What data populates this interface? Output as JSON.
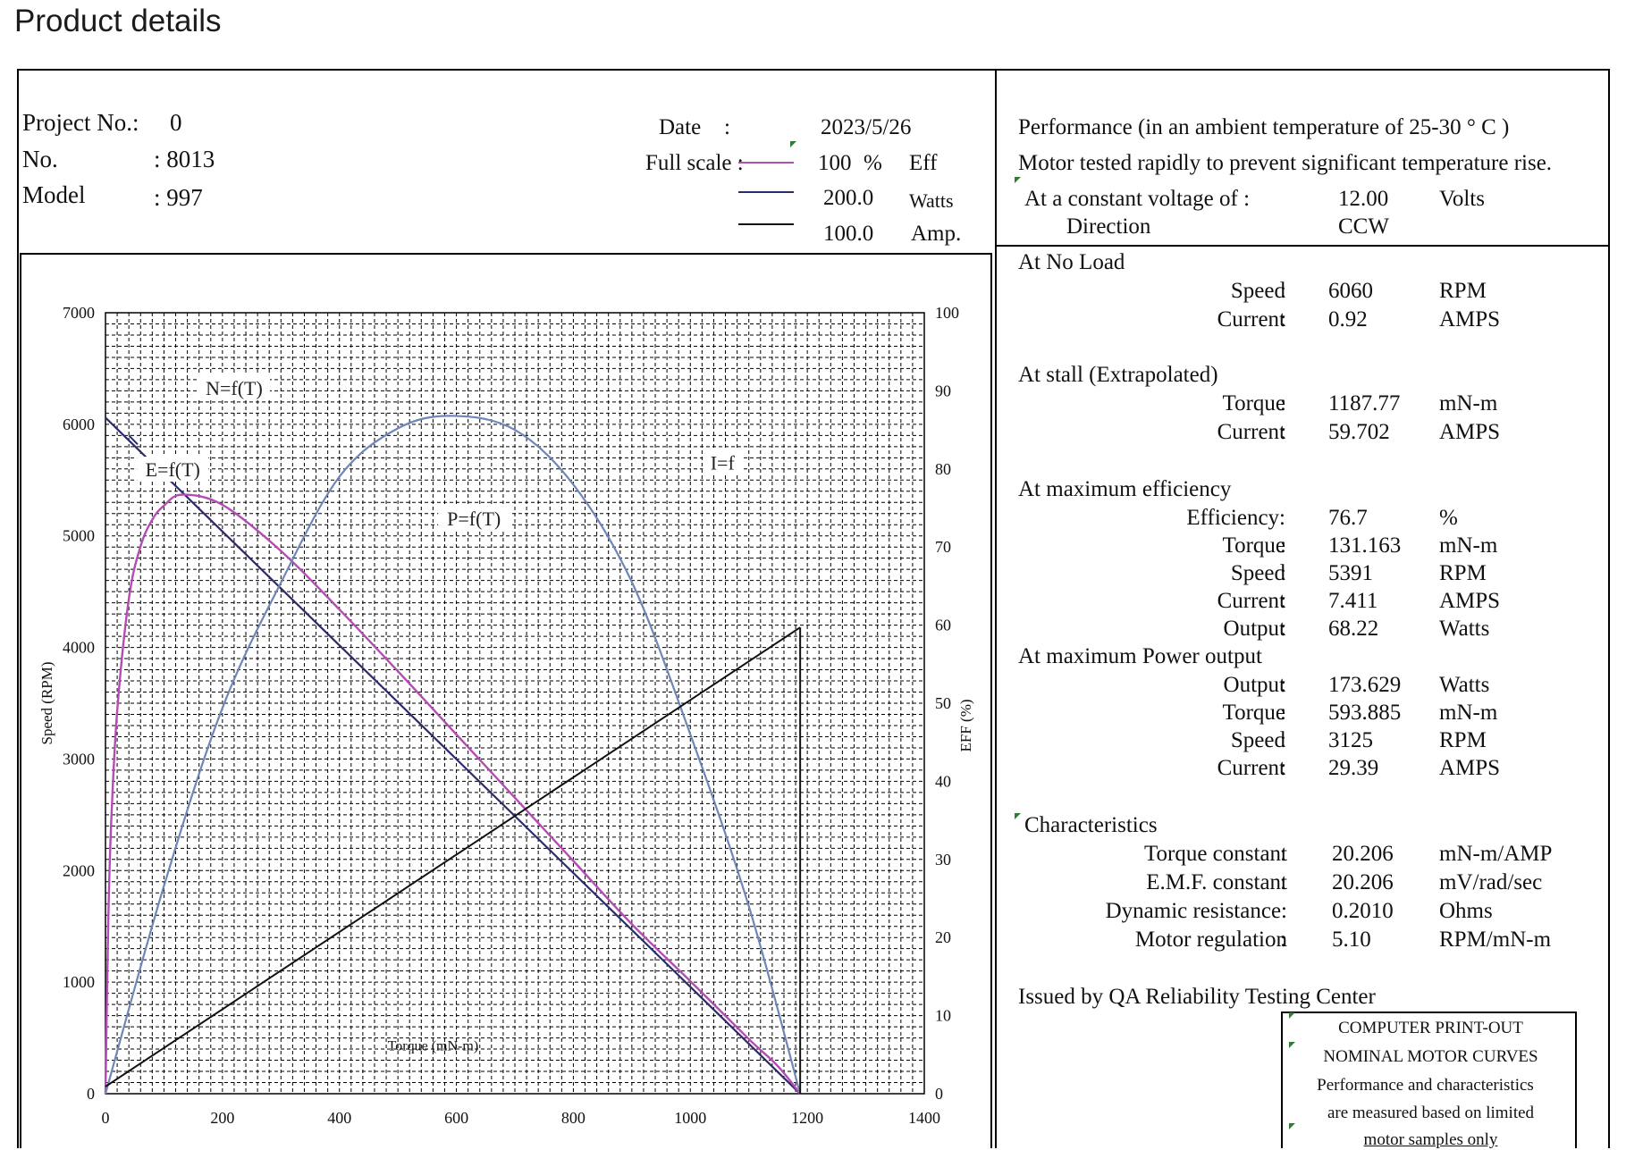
{
  "page": {
    "title": "Product details"
  },
  "header": {
    "project_label": "Project No.:",
    "project_value": "0",
    "no_label": "No.",
    "no_value": ": 8013",
    "model_label": "Model",
    "model_value": ": 997",
    "date_label": "Date",
    "date_colon": ":",
    "date_value": "2023/5/26",
    "fullscale_label": "Full scale :",
    "legend": [
      {
        "value": "100",
        "unit_prefix": "%",
        "unit": "Eff",
        "color": "#b34db3"
      },
      {
        "value": "200.0",
        "unit_prefix": "",
        "unit": "Watts",
        "color": "#2b2b6b"
      },
      {
        "value": "100.0",
        "unit_prefix": "",
        "unit": "Amp.",
        "color": "#111111"
      }
    ]
  },
  "performance": {
    "heading": "Performance (in an ambient temperature of 25-30 ° C )",
    "note": "Motor tested rapidly to prevent significant temperature rise.",
    "voltage_label": "At a constant voltage of :",
    "voltage_value": "12.00",
    "voltage_unit": "Volts",
    "direction_label": "Direction",
    "direction_value": "CCW",
    "sections": [
      {
        "title": "At No Load",
        "rows": [
          {
            "label": "Speed",
            "colon": ":",
            "value": "6060",
            "unit": "RPM"
          },
          {
            "label": "Current",
            "colon": ":",
            "value": "0.92",
            "unit": "AMPS"
          }
        ]
      },
      {
        "title": "At stall (Extrapolated)",
        "rows": [
          {
            "label": "Torque",
            "colon": ":",
            "value": "1187.77",
            "unit": "mN-m"
          },
          {
            "label": "Current",
            "colon": ":",
            "value": "59.702",
            "unit": "AMPS"
          }
        ]
      },
      {
        "title": "At maximum efficiency",
        "rows": [
          {
            "label": "Efficiency:",
            "colon": "",
            "value": "76.7",
            "unit": "%"
          },
          {
            "label": "Torque",
            "colon": ":",
            "value": "131.163",
            "unit": "mN-m"
          },
          {
            "label": "Speed",
            "colon": ":",
            "value": "5391",
            "unit": "RPM"
          },
          {
            "label": "Current",
            "colon": ":",
            "value": "7.411",
            "unit": "AMPS"
          },
          {
            "label": "Output",
            "colon": ":",
            "value": "68.22",
            "unit": "Watts"
          }
        ]
      },
      {
        "title": "At maximum Power output",
        "rows": [
          {
            "label": "Output",
            "colon": ":",
            "value": "173.629",
            "unit": "Watts"
          },
          {
            "label": "Torque",
            "colon": ":",
            "value": "593.885",
            "unit": "mN-m"
          },
          {
            "label": "Speed",
            "colon": ":",
            "value": "3125",
            "unit": "RPM"
          },
          {
            "label": "Current",
            "colon": ":",
            "value": "29.39",
            "unit": "AMPS"
          }
        ]
      }
    ],
    "characteristics": {
      "title": "Characteristics",
      "rows": [
        {
          "label": "Torque constant",
          "colon": ":",
          "value": "20.206",
          "unit": "mN-m/AMP"
        },
        {
          "label": "E.M.F. constant",
          "colon": ":",
          "value": "20.206",
          "unit": "mV/rad/sec"
        },
        {
          "label": "Dynamic resistance:",
          "colon": "",
          "value": "0.2010",
          "unit": "Ohms"
        },
        {
          "label": "Motor regulation",
          "colon": ":",
          "value": "5.10",
          "unit": "RPM/mN-m"
        }
      ]
    },
    "issued_by": "Issued by QA Reliability Testing Center",
    "stamp": [
      "COMPUTER PRINT-OUT",
      "NOMINAL MOTOR CURVES",
      "Performance and characteristics",
      "are measured based on limited",
      "motor samples only"
    ]
  },
  "chart_data": {
    "type": "line",
    "xlabel": "Torque (mN-m)",
    "ylabel_left": "Speed (RPM)",
    "ylabel_right": "EFF (%)",
    "xlim": [
      0,
      1400
    ],
    "ylim_left": [
      0,
      7000
    ],
    "ylim_right": [
      0,
      100
    ],
    "x_ticks": [
      0,
      200,
      400,
      600,
      800,
      1000,
      1200,
      1400
    ],
    "y_ticks_left": [
      0,
      1000,
      2000,
      3000,
      4000,
      5000,
      6000,
      7000
    ],
    "y_ticks_right": [
      0,
      10,
      20,
      30,
      40,
      50,
      60,
      70,
      80,
      90,
      100
    ],
    "grid": true,
    "annotations": [
      "N=f(T)",
      "E=f(T)",
      "P=f(T)",
      "I=f"
    ],
    "series": [
      {
        "name": "N=f(T)",
        "color": "#2b2b6b",
        "x": [
          0,
          1187.77
        ],
        "y": [
          6060,
          0
        ]
      },
      {
        "name": "E=f(T)",
        "color": "#b34db3",
        "x": [
          0,
          5,
          10,
          20,
          40,
          60,
          80,
          100,
          131,
          200,
          300,
          400,
          500,
          600,
          700,
          800,
          900,
          1000,
          1100,
          1150,
          1187.77
        ],
        "y": [
          0,
          23.0,
          35.0,
          49.0,
          63.4,
          70.1,
          73.5,
          75.3,
          76.7,
          75.4,
          69.5,
          62.0,
          54.1,
          46.0,
          37.9,
          29.8,
          21.7,
          14.4,
          7.0,
          3.5,
          0
        ]
      },
      {
        "name": "P=f(T)",
        "color": "#6f86b8",
        "x": [
          0,
          100,
          200,
          300,
          400,
          500,
          593.885,
          700,
          800,
          900,
          1000,
          1100,
          1187.77
        ],
        "y": [
          0,
          53.2,
          98.8,
          130.9,
          158.0,
          170.4,
          173.6,
          170.0,
          156.0,
          131.0,
          92.0,
          48.0,
          0
        ]
      },
      {
        "name": "I=f",
        "color": "#111111",
        "x": [
          0,
          1187.77
        ],
        "y": [
          0.92,
          59.702
        ]
      }
    ]
  }
}
